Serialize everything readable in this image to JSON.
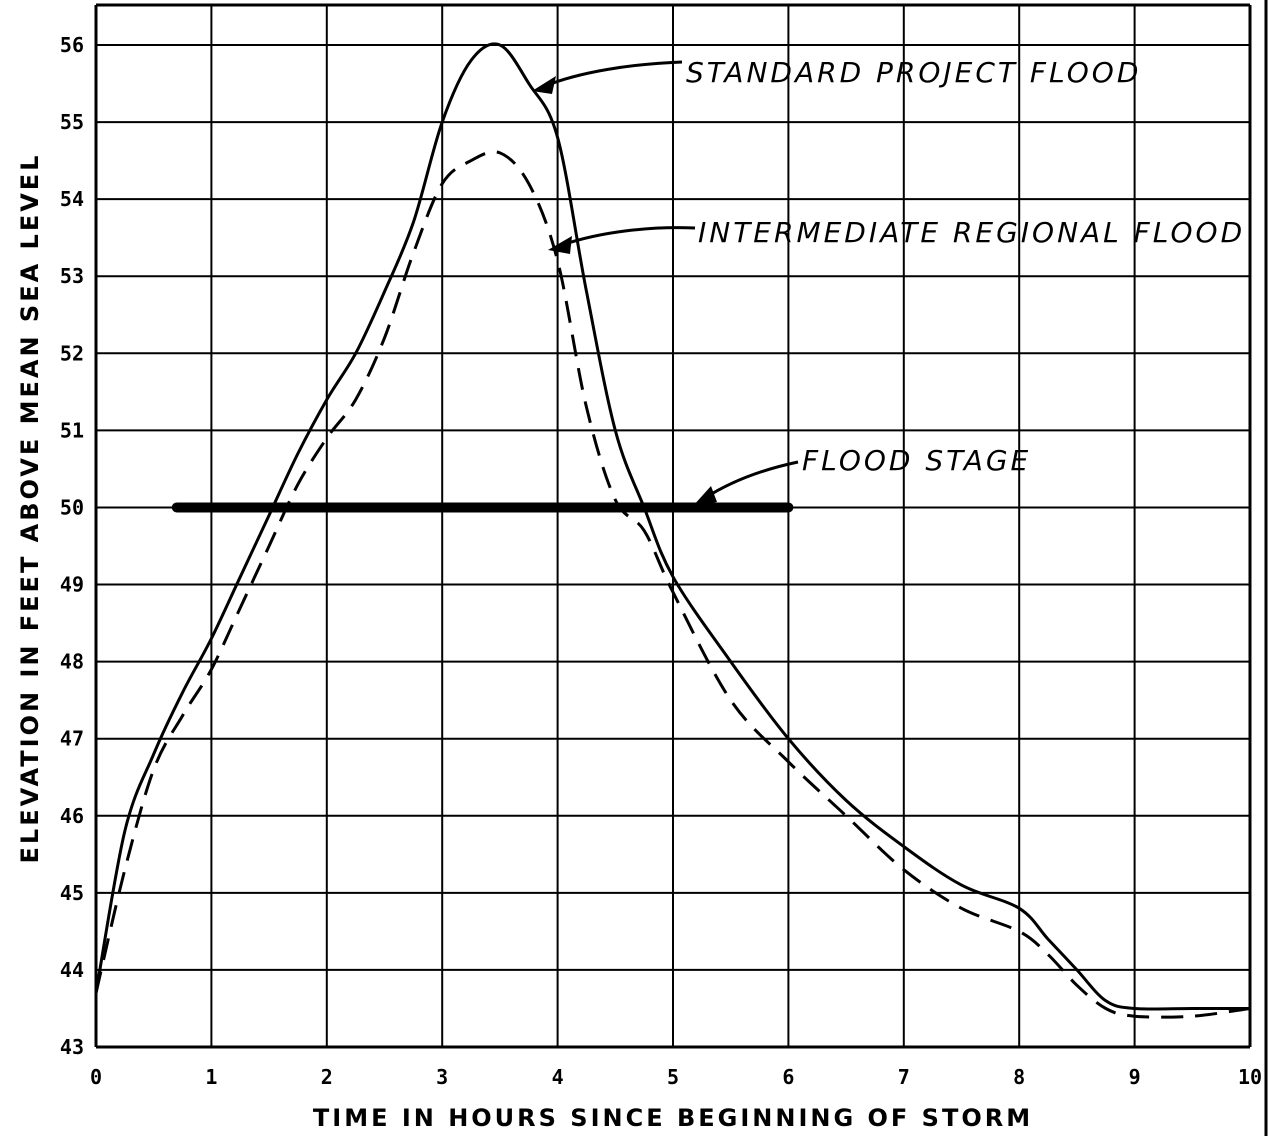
{
  "chart_data": {
    "type": "line",
    "title": "",
    "xlabel": "TIME IN HOURS SINCE BEGINNING OF STORM",
    "ylabel": "ELEVATION IN FEET ABOVE MEAN SEA LEVEL",
    "xlim": [
      0,
      10
    ],
    "ylim": [
      43,
      56
    ],
    "grid": true,
    "x_ticks": [
      "0",
      "1",
      "2",
      "3",
      "4",
      "5",
      "6",
      "7",
      "8",
      "9",
      "10"
    ],
    "y_ticks": [
      "43",
      "44",
      "45",
      "46",
      "47",
      "48",
      "49",
      "50",
      "51",
      "52",
      "53",
      "54",
      "55",
      "56"
    ],
    "series": [
      {
        "name": "STANDARD PROJECT FLOOD",
        "style": "solid",
        "x": [
          0,
          0.25,
          0.5,
          0.75,
          1.0,
          1.25,
          1.5,
          1.75,
          2.0,
          2.25,
          2.5,
          2.75,
          3.0,
          3.25,
          3.5,
          3.75,
          4.0,
          4.25,
          4.5,
          4.75,
          5.0,
          5.5,
          6.0,
          6.5,
          7.0,
          7.5,
          8.0,
          8.25,
          8.5,
          8.75,
          9.0,
          9.5,
          10.0
        ],
        "y": [
          43.7,
          45.8,
          46.8,
          47.6,
          48.3,
          49.1,
          49.9,
          50.7,
          51.4,
          52.0,
          52.8,
          53.7,
          55.0,
          55.8,
          56.0,
          55.5,
          54.8,
          52.8,
          51.0,
          50.0,
          49.1,
          48.0,
          47.0,
          46.2,
          45.6,
          45.1,
          44.8,
          44.4,
          44.0,
          43.6,
          43.5,
          43.5,
          43.5
        ]
      },
      {
        "name": "INTERMEDIATE REGIONAL FLOOD",
        "style": "dashed",
        "x": [
          0,
          0.25,
          0.5,
          0.75,
          1.0,
          1.25,
          1.5,
          1.75,
          2.0,
          2.25,
          2.5,
          2.75,
          3.0,
          3.25,
          3.5,
          3.75,
          4.0,
          4.25,
          4.5,
          4.75,
          5.0,
          5.5,
          6.0,
          6.5,
          7.0,
          7.5,
          8.0,
          8.25,
          8.5,
          8.75,
          9.0,
          9.5,
          10.0
        ],
        "y": [
          43.7,
          45.3,
          46.6,
          47.3,
          47.9,
          48.7,
          49.5,
          50.3,
          50.9,
          51.4,
          52.2,
          53.3,
          54.2,
          54.5,
          54.6,
          54.2,
          53.2,
          51.3,
          50.1,
          49.7,
          48.9,
          47.5,
          46.7,
          46.0,
          45.3,
          44.8,
          44.5,
          44.2,
          43.8,
          43.5,
          43.4,
          43.4,
          43.5
        ]
      }
    ],
    "reference_lines": [
      {
        "name": "FLOOD STAGE",
        "y": 50,
        "x_start": 0.7,
        "x_end": 6.0
      }
    ],
    "annotations": {
      "spf": "STANDARD PROJECT FLOOD",
      "irf": "INTERMEDIATE REGIONAL FLOOD",
      "flood_stage": "FLOOD STAGE"
    }
  }
}
